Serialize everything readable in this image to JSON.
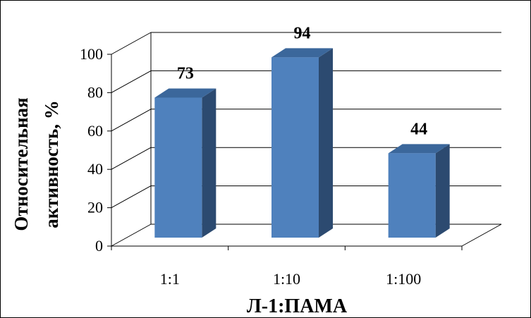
{
  "chart_data": {
    "type": "bar",
    "categories": [
      "1:1",
      "1:10",
      "1:100"
    ],
    "values": [
      73,
      94,
      44
    ],
    "data_labels": [
      "73",
      "94",
      "44"
    ],
    "xlabel": "Л-1:ПАМА",
    "ylabel_line1": "Относительная",
    "ylabel_line2": "активность, %",
    "ylim": [
      0,
      100
    ],
    "yticks": [
      "0",
      "20",
      "40",
      "60",
      "80",
      "100"
    ],
    "grid": true,
    "three_d": true,
    "legend": "none",
    "colors": {
      "bar_front": "#4f81bd",
      "bar_side": "#2c4a70",
      "bar_top": "#3b679b",
      "grid": "#000000",
      "background": "#ffffff"
    }
  }
}
